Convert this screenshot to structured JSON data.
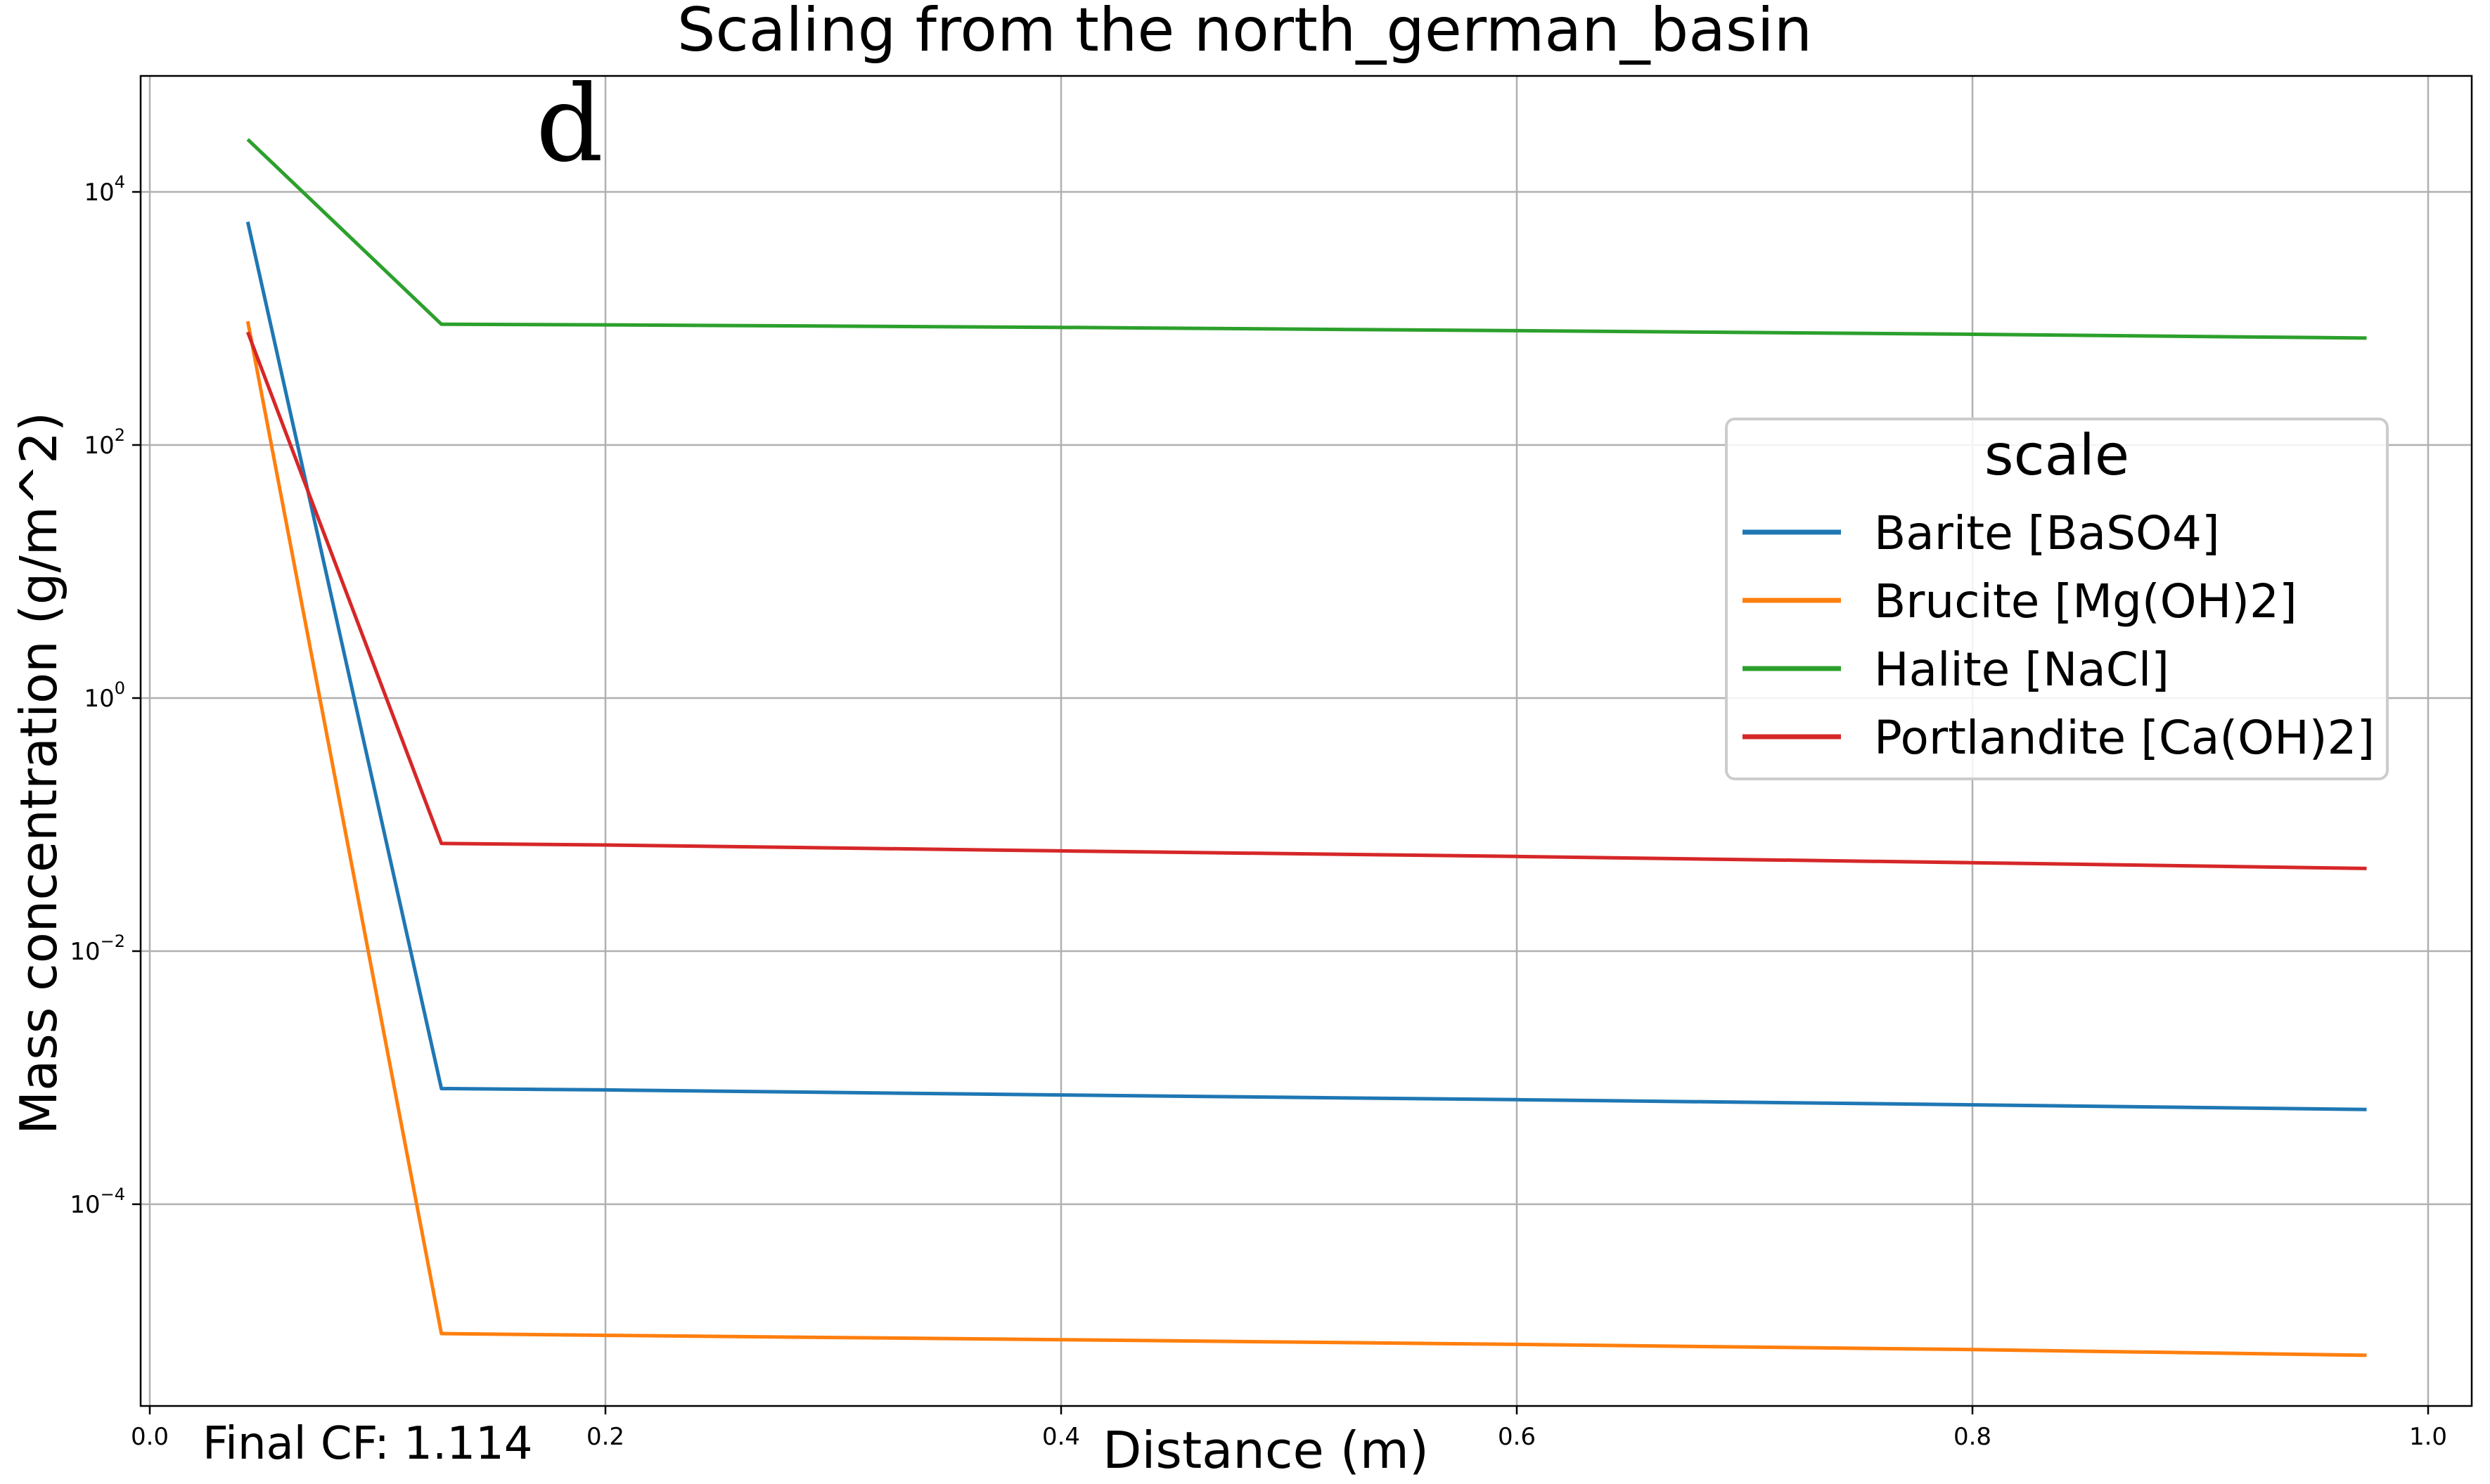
{
  "chart_data": {
    "type": "line",
    "title": "Scaling from the north_german_basin",
    "xlabel": "Distance (m)",
    "ylabel": "Mass concentration (g/m^2)",
    "panel_label": "d",
    "footer_text": "Final CF: 1.114",
    "xlim": [
      0.0,
      1.0
    ],
    "ylim": [
      1e-06,
      100000.0
    ],
    "yscale": "log",
    "grid": true,
    "x_ticks": [
      {
        "v": 0.0,
        "label": "0.0"
      },
      {
        "v": 0.2,
        "label": "0.2"
      },
      {
        "v": 0.4,
        "label": "0.4"
      },
      {
        "v": 0.6,
        "label": "0.6"
      },
      {
        "v": 0.8,
        "label": "0.8"
      },
      {
        "v": 1.0,
        "label": "1.0"
      }
    ],
    "y_ticks": [
      {
        "exp": 4,
        "base": "10",
        "sup": "4"
      },
      {
        "exp": 2,
        "base": "10",
        "sup": "2"
      },
      {
        "exp": 0,
        "base": "10",
        "sup": "0"
      },
      {
        "exp": -2,
        "base": "10",
        "sup": "−2"
      },
      {
        "exp": -4,
        "base": "10",
        "sup": "−4"
      }
    ],
    "legend": {
      "title": "scale",
      "position": "center-right"
    },
    "series": [
      {
        "name": "Barite [BaSO4]",
        "color": "#1f77b4",
        "points": [
          [
            0.043,
            5800
          ],
          [
            0.128,
            0.00082
          ],
          [
            0.2,
            0.0008
          ],
          [
            0.4,
            0.00073
          ],
          [
            0.6,
            0.00067
          ],
          [
            0.8,
            0.00061
          ],
          [
            0.973,
            0.00056
          ]
        ]
      },
      {
        "name": "Brucite [Mg(OH)2]",
        "color": "#ff7f0e",
        "points": [
          [
            0.043,
            950
          ],
          [
            0.128,
            9.5e-06
          ],
          [
            0.2,
            9.2e-06
          ],
          [
            0.4,
            8.5e-06
          ],
          [
            0.6,
            7.8e-06
          ],
          [
            0.8,
            7.1e-06
          ],
          [
            0.973,
            6.4e-06
          ]
        ]
      },
      {
        "name": "Halite [NaCl]",
        "color": "#2ca02c",
        "points": [
          [
            0.043,
            26000
          ],
          [
            0.128,
            900
          ],
          [
            0.2,
            890
          ],
          [
            0.4,
            850
          ],
          [
            0.6,
            800
          ],
          [
            0.8,
            750
          ],
          [
            0.973,
            700
          ]
        ]
      },
      {
        "name": "Portlandite [Ca(OH)2]",
        "color": "#d62728",
        "points": [
          [
            0.043,
            780
          ],
          [
            0.128,
            0.071
          ],
          [
            0.2,
            0.069
          ],
          [
            0.4,
            0.062
          ],
          [
            0.6,
            0.056
          ],
          [
            0.8,
            0.05
          ],
          [
            0.973,
            0.045
          ]
        ]
      }
    ]
  }
}
